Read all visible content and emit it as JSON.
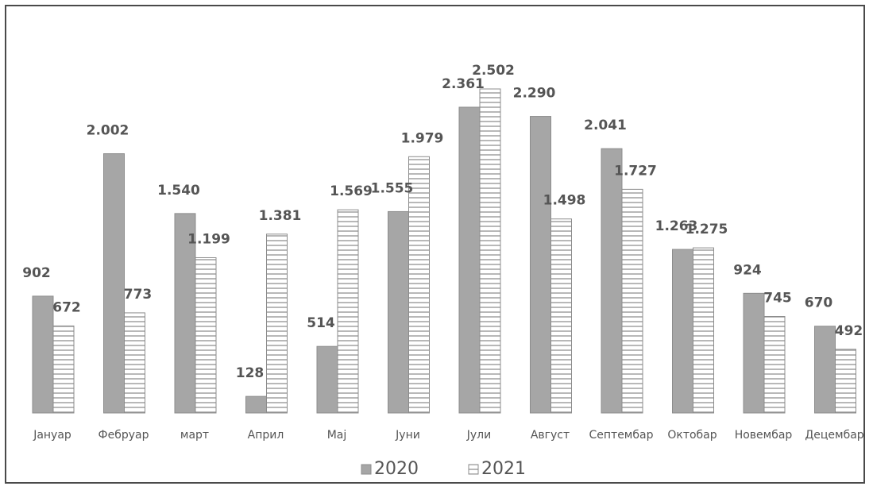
{
  "chart_data": {
    "type": "bar",
    "categories": [
      "Јануар",
      "Фебруар",
      "март",
      "Април",
      "Мај",
      "Јуни",
      "Јули",
      "Август",
      "Септембар",
      "Октобар",
      "Новембар",
      "Децембар"
    ],
    "series": [
      {
        "name": "2020",
        "values": [
          902,
          2002,
          1540,
          128,
          514,
          1555,
          2361,
          2290,
          2041,
          1263,
          924,
          670
        ],
        "labels": [
          "902",
          "2.002",
          "1.540",
          "128",
          "514",
          "1.555",
          "2.361",
          "2.290",
          "2.041",
          "1.263",
          "924",
          "670"
        ],
        "color": "#a6a6a6"
      },
      {
        "name": "2021",
        "values": [
          672,
          773,
          1199,
          1381,
          1569,
          1979,
          2502,
          1498,
          1727,
          1275,
          745,
          492
        ],
        "labels": [
          "672",
          "773",
          "1.199",
          "1.381",
          "1.569",
          "1.979",
          "2.502",
          "1.498",
          "1.727",
          "1.275",
          "745",
          "492"
        ],
        "color": "#ffffff"
      }
    ],
    "ylim": [
      0,
      2600
    ],
    "grid": false,
    "legend": "bottom"
  }
}
